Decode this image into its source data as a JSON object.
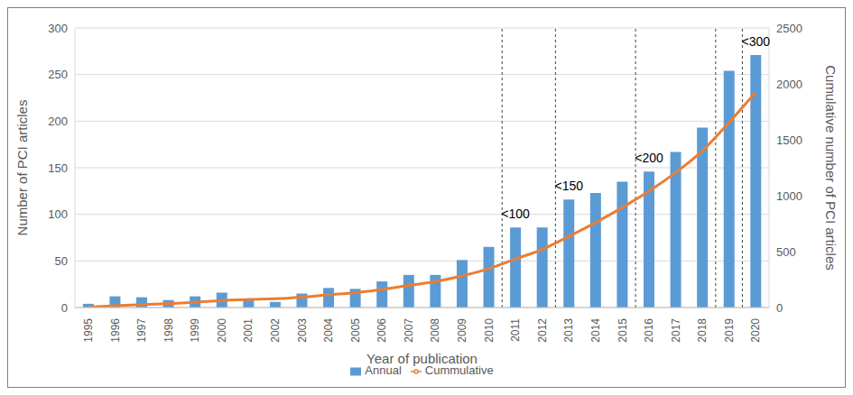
{
  "chart_data": {
    "type": "bar",
    "x_label": "Year of publication",
    "y_label": "Number of PCI articles",
    "y2_label": "Cumulative number of PCI articles",
    "categories": [
      "1995",
      "1996",
      "1997",
      "1998",
      "1999",
      "2000",
      "2001",
      "2002",
      "2003",
      "2004",
      "2005",
      "2006",
      "2007",
      "2008",
      "2009",
      "2010",
      "2011",
      "2012",
      "2013",
      "2014",
      "2015",
      "2016",
      "2017",
      "2018",
      "2019",
      "2020"
    ],
    "series": [
      {
        "name": "Annual",
        "type": "bar",
        "color": "#5b9bd5",
        "values": [
          4,
          12,
          11,
          8,
          12,
          16,
          9,
          6,
          15,
          21,
          20,
          28,
          35,
          35,
          51,
          65,
          86,
          86,
          116,
          123,
          135,
          146,
          167,
          193,
          254,
          271
        ]
      },
      {
        "name": "Cummulative",
        "type": "line",
        "axis": "y2",
        "color": "#ed7d31",
        "values": [
          4,
          16,
          27,
          35,
          47,
          63,
          72,
          78,
          93,
          114,
          134,
          162,
          197,
          232,
          283,
          348,
          434,
          520,
          636,
          759,
          894,
          1040,
          1207,
          1400,
          1654,
          1925
        ]
      }
    ],
    "ylim": [
      0,
      300
    ],
    "yticks": [
      0,
      50,
      100,
      150,
      200,
      250,
      300
    ],
    "y2lim": [
      0,
      2500
    ],
    "y2ticks": [
      0,
      500,
      1000,
      1500,
      2000,
      2500
    ],
    "annotations": [
      {
        "text": "<100",
        "x": "2011"
      },
      {
        "text": "<150",
        "x": "2013"
      },
      {
        "text": "<200",
        "x": "2016"
      },
      {
        "text": "<300",
        "x": "2020"
      }
    ],
    "reference_lines": [
      "2011",
      "2013",
      "2016",
      "2019",
      "2020"
    ],
    "grid": true,
    "legend": "bottom"
  }
}
